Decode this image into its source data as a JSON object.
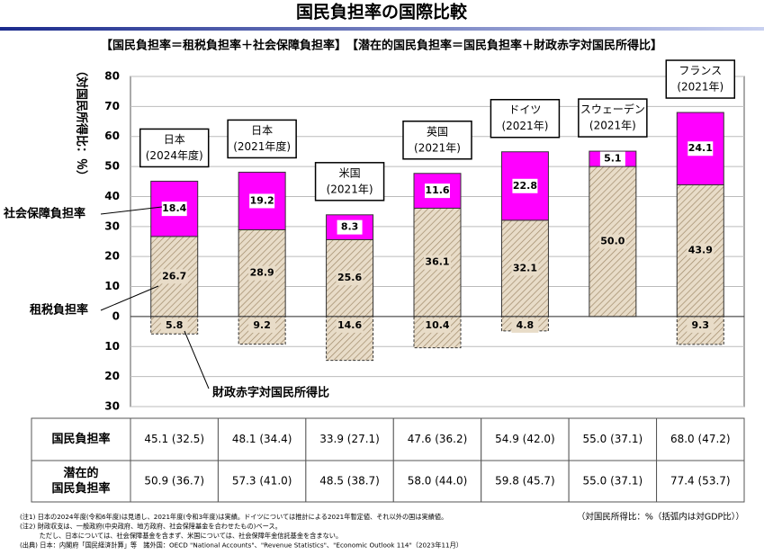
{
  "chart_data": {
    "type": "bar",
    "stacked": true,
    "title": "国民負担率の国際比較",
    "subtitle": "【国民負担率＝租税負担率＋社会保障負担率】　【潜在的国民負担率＝国民負担率＋財政赤字対国民所得比】",
    "ylabel": "（対国民所得比：％）",
    "categories": [
      [
        "日本",
        "(2024年度)"
      ],
      [
        "日本",
        "(2021年度)"
      ],
      [
        "米国",
        "(2021年)"
      ],
      [
        "英国",
        "(2021年)"
      ],
      [
        "ドイツ",
        "(2021年)"
      ],
      [
        "スウェーデン",
        "(2021年)"
      ],
      [
        "フランス",
        "(2021年)"
      ]
    ],
    "series": [
      {
        "name": "租税負担率",
        "color": "#d9c7a8",
        "values": [
          26.7,
          28.9,
          25.6,
          36.1,
          32.1,
          50.0,
          43.9
        ],
        "value_labels": [
          "26.7",
          "28.9",
          "25.6",
          "36.1",
          "32.1",
          "50.0",
          "43.9"
        ]
      },
      {
        "name": "社会保障負担率",
        "color": "#ff00ff",
        "values": [
          18.4,
          19.2,
          8.3,
          11.6,
          22.8,
          5.1,
          24.1
        ],
        "value_labels": [
          "18.4",
          "19.2",
          "8.3",
          "11.6",
          "22.8",
          "5.1",
          "24.1"
        ]
      },
      {
        "name": "財政赤字対国民所得比",
        "color": "#d9c7a8",
        "values": [
          -5.8,
          -9.2,
          -14.6,
          -10.4,
          -4.8,
          null,
          -9.3
        ],
        "value_labels": [
          "5.8",
          "9.2",
          "14.6",
          "10.4",
          "4.8",
          null,
          "9.3"
        ]
      }
    ],
    "ylim": [
      -30,
      80
    ],
    "yticks": [
      80,
      70,
      60,
      50,
      40,
      30,
      20,
      10,
      0,
      {
        "value": -10,
        "label": "10"
      },
      {
        "value": -20,
        "label": "20"
      },
      {
        "value": -30,
        "label": "30"
      }
    ],
    "grid": true,
    "table": {
      "rows": [
        {
          "label": [
            "国民負担率"
          ],
          "cells": [
            "45.1 (32.5)",
            "48.1 (34.4)",
            "33.9 (27.1)",
            "47.6 (36.2)",
            "54.9 (42.0)",
            "55.0 (37.1)",
            "68.0 (47.2)"
          ]
        },
        {
          "label": [
            "潜在的",
            "国民負担率"
          ],
          "cells": [
            "50.9 (36.7)",
            "57.3 (41.0)",
            "48.5 (38.7)",
            "58.0 (44.0)",
            "59.8 (45.7)",
            "55.0 (37.1)",
            "77.4 (53.7)"
          ]
        }
      ]
    },
    "unit_note": "（対国民所得比：%（括弧内は対GDP比））",
    "notes": [
      "(注1) 日本の2024年度(令和6年度)は見通し、2021年度(令和3年度)は実績。ドイツについては推計による2021年暫定値、それ以外の国は実績値。",
      "(注2) 財政収支は、一般政府(中央政府、地方政府、社会保障基金を合わせたもの)ベース。",
      "　　　ただし、日本については、社会保障基金を含まず、米国については、社会保障年金信託基金を含まない。",
      "(出典) 日本：内閣府「国民経済計算」等　諸外国：OECD \"National Accounts\"、\"Revenue Statistics\"、\"Economic Outlook 114\"（2023年11月）"
    ]
  }
}
